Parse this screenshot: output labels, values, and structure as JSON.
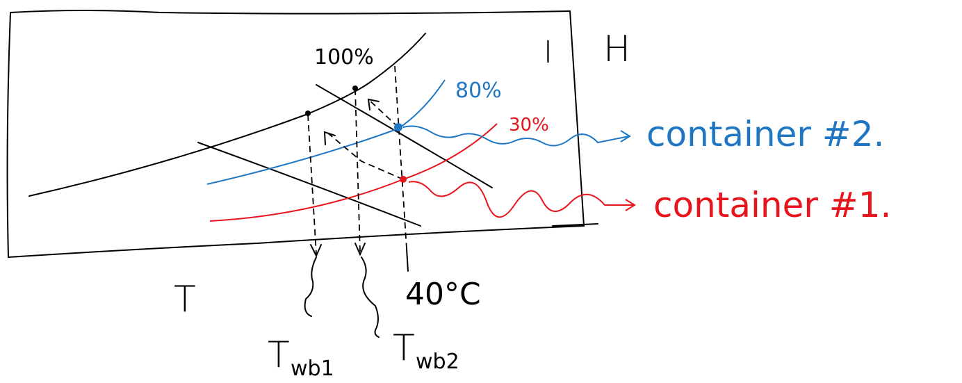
{
  "labels": {
    "saturation": "100%",
    "blue_curve": "80%",
    "red_curve": "30%",
    "enthalpy_axis": "I",
    "humidity_axis": "H",
    "temperature_axis": "T",
    "dry_bulb": "40°C"
  },
  "containers": [
    {
      "label": "container #2."
    },
    {
      "label": "container #1."
    }
  ],
  "wet_bulb": [
    {
      "symbol": "T",
      "subscript": "wb1"
    },
    {
      "symbol": "T",
      "subscript": "wb2"
    }
  ]
}
